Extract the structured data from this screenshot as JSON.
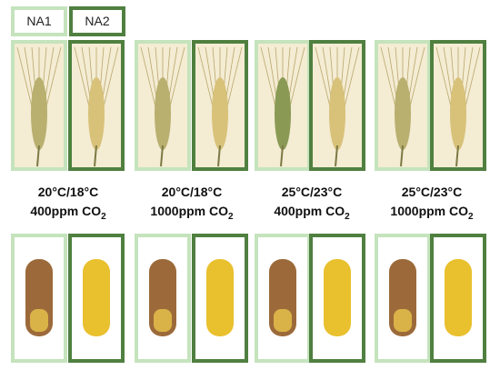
{
  "legend": [
    {
      "label": "NA1"
    },
    {
      "label": "NA2"
    }
  ],
  "conditions": [
    {
      "temperature": "20°C/18°C",
      "co2": "400ppm CO",
      "subscript": "2"
    },
    {
      "temperature": "20°C/18°C",
      "co2": "1000ppm CO",
      "subscript": "2"
    },
    {
      "temperature": "25°C/23°C",
      "co2": "400ppm CO",
      "subscript": "2"
    },
    {
      "temperature": "25°C/23°C",
      "co2": "1000ppm CO",
      "subscript": "2"
    }
  ]
}
